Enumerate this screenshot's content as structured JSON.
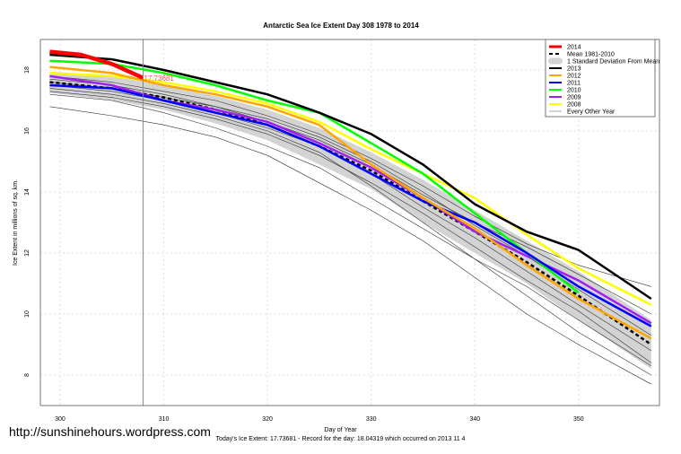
{
  "chart_data": {
    "type": "line",
    "title": "Antarctic Sea Ice Extent Day 308 1978 to 2014",
    "xlabel": "Day of Year",
    "ylabel": "Ice Extent in millions of sq. km.",
    "footer": "Today's Ice Extent: 17.73681  - Record for the day: 18.04319 which occurred on 2013 11 4",
    "xlim": [
      298.1,
      357.8
    ],
    "ylim": [
      7,
      19
    ],
    "xticks": [
      300,
      310,
      320,
      330,
      340,
      350
    ],
    "yticks": [
      8,
      10,
      12,
      14,
      16,
      18
    ],
    "grid": true,
    "legend_position": "top-right",
    "marker_day": 308,
    "marker_label": "17.73681",
    "x": [
      299,
      305,
      310,
      315,
      320,
      325,
      330,
      335,
      340,
      345,
      350,
      357
    ],
    "std_band": {
      "name": "1 Standard Deviation From Mean",
      "color": "#d3d3d3",
      "upper": [
        17.95,
        17.8,
        17.5,
        17.15,
        16.7,
        16.1,
        15.3,
        14.4,
        13.4,
        12.4,
        11.4,
        9.8
      ],
      "lower": [
        17.25,
        17.0,
        16.7,
        16.25,
        15.7,
        14.9,
        14.1,
        13.0,
        12.0,
        11.0,
        9.8,
        8.2
      ]
    },
    "mean": {
      "name": "Mean 1981-2010",
      "color": "#000000",
      "values": [
        17.6,
        17.4,
        17.1,
        16.7,
        16.2,
        15.5,
        14.7,
        13.7,
        12.7,
        11.7,
        10.6,
        9.0
      ]
    },
    "other_years": {
      "name": "Every Other Year",
      "color": "#555555",
      "series": [
        [
          16.8,
          16.5,
          16.2,
          15.8,
          15.2,
          14.3,
          13.4,
          12.4,
          11.2,
          10.0,
          9.0,
          7.7
        ],
        [
          17.3,
          17.1,
          16.8,
          16.4,
          15.9,
          15.2,
          14.3,
          13.3,
          12.2,
          11.1,
          10.1,
          8.4
        ],
        [
          17.5,
          17.3,
          17.0,
          16.6,
          16.1,
          15.5,
          14.6,
          13.5,
          12.5,
          11.4,
          10.3,
          8.8
        ],
        [
          17.7,
          17.5,
          17.2,
          16.8,
          16.4,
          15.8,
          15.0,
          14.0,
          12.9,
          11.9,
          10.8,
          9.3
        ],
        [
          17.4,
          17.2,
          16.9,
          16.5,
          16.0,
          15.3,
          14.2,
          13.0,
          11.8,
          10.6,
          9.4,
          8.0
        ],
        [
          17.6,
          17.4,
          17.1,
          16.8,
          16.3,
          15.7,
          14.9,
          13.9,
          13.0,
          12.2,
          11.3,
          10.0
        ],
        [
          17.2,
          17.0,
          16.6,
          16.1,
          15.5,
          14.8,
          13.8,
          12.8,
          11.8,
          10.9,
          9.8,
          8.3
        ],
        [
          17.8,
          17.6,
          17.3,
          17.0,
          16.5,
          15.9,
          15.1,
          14.2,
          13.2,
          12.3,
          11.6,
          10.9
        ]
      ]
    },
    "series": [
      {
        "name": "2013",
        "color": "#000000",
        "values": [
          18.5,
          18.35,
          18.0,
          17.6,
          17.2,
          16.6,
          15.9,
          14.9,
          13.6,
          12.7,
          12.1,
          10.5
        ]
      },
      {
        "name": "2012",
        "color": "#ffa500",
        "values": [
          18.1,
          17.9,
          17.5,
          17.2,
          16.8,
          16.2,
          14.9,
          13.8,
          12.8,
          11.6,
          10.5,
          9.2
        ]
      },
      {
        "name": "2011",
        "color": "#0000ff",
        "values": [
          17.5,
          17.4,
          17.0,
          16.6,
          16.2,
          15.5,
          14.6,
          13.7,
          13.0,
          12.0,
          10.9,
          9.6
        ]
      },
      {
        "name": "2010",
        "color": "#00ff00",
        "values": [
          18.3,
          18.2,
          17.9,
          17.5,
          17.0,
          16.6,
          15.6,
          14.6,
          13.3,
          12.0,
          10.7,
          null
        ]
      },
      {
        "name": "2009",
        "color": "#a020f0",
        "values": [
          17.8,
          17.5,
          17.0,
          16.7,
          16.3,
          15.6,
          14.8,
          13.8,
          12.7,
          11.9,
          11.1,
          9.7
        ]
      },
      {
        "name": "2008",
        "color": "#ffff00",
        "values": [
          17.9,
          17.8,
          17.6,
          17.3,
          16.9,
          16.3,
          15.4,
          14.6,
          13.8,
          12.6,
          11.5,
          10.3
        ]
      }
    ],
    "current": {
      "name": "2014",
      "color": "#ff0000",
      "x": [
        299,
        302,
        305,
        308
      ],
      "values": [
        18.6,
        18.5,
        18.2,
        17.74
      ]
    }
  },
  "watermark": "http://sunshinehours.wordpress.com"
}
